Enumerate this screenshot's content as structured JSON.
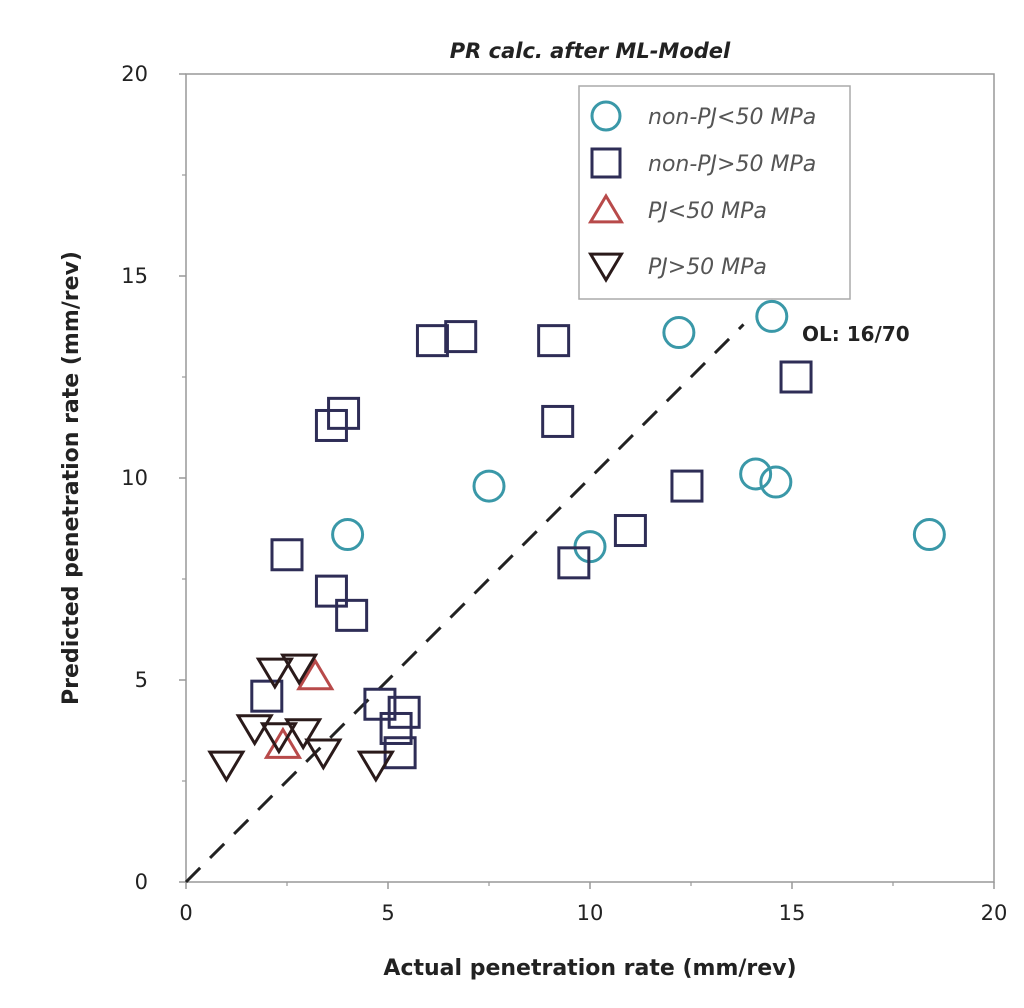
{
  "chart_data": {
    "type": "scatter",
    "title": "PR calc. after ML-Model",
    "xlabel": "Actual penetration rate (mm/rev)",
    "ylabel": "Predicted penetration rate (mm/rev)",
    "xlim": [
      0,
      20
    ],
    "ylim": [
      0,
      20
    ],
    "xticks": [
      0,
      5,
      10,
      15,
      20
    ],
    "yticks": [
      0,
      5,
      10,
      15,
      20
    ],
    "grid": false,
    "legend_position": "top-right",
    "annotation": "OL: 16/70",
    "reference_line": {
      "style": "dashed",
      "x": [
        0,
        13.8
      ],
      "y": [
        0,
        13.8
      ]
    },
    "series": [
      {
        "name": "non-PJ<50 MPa",
        "marker": "circle",
        "color": "#3a98a8",
        "points": [
          [
            4.0,
            8.6
          ],
          [
            7.5,
            9.8
          ],
          [
            10.0,
            8.3
          ],
          [
            12.2,
            13.6
          ],
          [
            14.1,
            10.1
          ],
          [
            14.5,
            14.0
          ],
          [
            14.6,
            9.9
          ],
          [
            18.4,
            8.6
          ]
        ]
      },
      {
        "name": "non-PJ>50 MPa",
        "marker": "square",
        "color": "#2e2d56",
        "points": [
          [
            2.0,
            4.6
          ],
          [
            2.5,
            8.1
          ],
          [
            3.6,
            11.3
          ],
          [
            3.9,
            11.6
          ],
          [
            3.6,
            7.2
          ],
          [
            4.1,
            6.6
          ],
          [
            4.8,
            4.4
          ],
          [
            5.2,
            3.8
          ],
          [
            5.4,
            4.2
          ],
          [
            5.3,
            3.2
          ],
          [
            6.1,
            13.4
          ],
          [
            6.8,
            13.5
          ],
          [
            9.1,
            13.4
          ],
          [
            9.2,
            11.4
          ],
          [
            9.6,
            7.9
          ],
          [
            11.0,
            8.7
          ],
          [
            12.4,
            9.8
          ],
          [
            15.1,
            12.5
          ]
        ]
      },
      {
        "name": "PJ<50 MPa",
        "marker": "triangle-up",
        "color": "#b84a4a",
        "points": [
          [
            2.4,
            3.4
          ],
          [
            3.2,
            5.1
          ]
        ]
      },
      {
        "name": "PJ>50 MPa",
        "marker": "triangle-down",
        "color": "#2a1a1a",
        "points": [
          [
            1.0,
            2.9
          ],
          [
            1.7,
            3.8
          ],
          [
            2.2,
            5.2
          ],
          [
            2.3,
            3.6
          ],
          [
            2.8,
            5.3
          ],
          [
            2.9,
            3.7
          ],
          [
            3.4,
            3.2
          ],
          [
            4.7,
            2.9
          ]
        ]
      }
    ]
  }
}
